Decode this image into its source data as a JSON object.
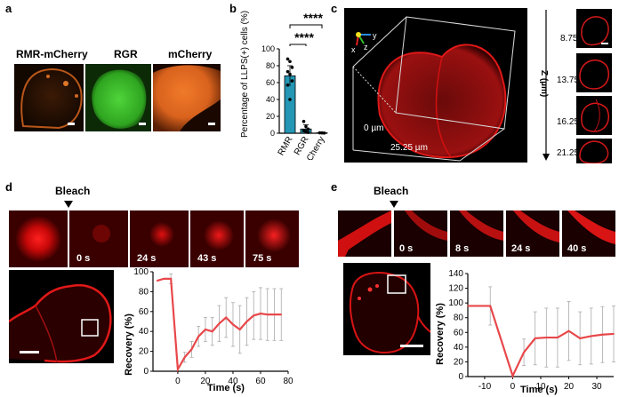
{
  "panel_labels": {
    "a": "a",
    "b": "b",
    "c": "c",
    "d": "d",
    "e": "e"
  },
  "panel_a": {
    "captions": [
      "RMR-mCherry",
      "RGR",
      "mCherry"
    ]
  },
  "panel_b": {
    "ylabel": "Percentage of LLPS(+) cells (%)",
    "significance": [
      "****",
      "****"
    ]
  },
  "panel_c": {
    "axes": [
      "x",
      "y",
      "z"
    ],
    "label_origin": "0 µm",
    "label_length": "25.25 µm",
    "z_axis_label": "Z (µm)",
    "z_values": [
      "8.75",
      "13.75",
      "16.25",
      "21.25"
    ]
  },
  "panel_d": {
    "bleach_label": "Bleach",
    "times": [
      "0 s",
      "24 s",
      "43 s",
      "75 s"
    ],
    "ylabel": "Recovery (%)",
    "xlabel": "Time (s)"
  },
  "panel_e": {
    "bleach_label": "Bleach",
    "times": [
      "0 s",
      "8 s",
      "24 s",
      "40 s"
    ],
    "ylabel": "Recovery (%)",
    "xlabel": "Time (s)"
  },
  "chart_data": [
    {
      "type": "bar",
      "categories": [
        "RMR",
        "RGR",
        "mCherry"
      ],
      "values": [
        68,
        5,
        0.5
      ],
      "errors": [
        12,
        5,
        0.5
      ],
      "points": [
        [
          88,
          85,
          78,
          73,
          70,
          62,
          57,
          40
        ],
        [
          14,
          8,
          5,
          3,
          2,
          1
        ],
        [
          0.5,
          0.3,
          0.2
        ]
      ],
      "ylim": [
        0,
        100
      ],
      "yticks": [
        0,
        20,
        40,
        60,
        80,
        100
      ],
      "color": "#2596b4"
    },
    {
      "type": "line",
      "x": [
        -15,
        -10,
        -5,
        0,
        5,
        10,
        15,
        20,
        25,
        30,
        35,
        40,
        45,
        50,
        55,
        60,
        65,
        70,
        75
      ],
      "y": [
        91,
        93,
        93,
        2,
        14,
        22,
        35,
        42,
        40,
        48,
        54,
        47,
        42,
        50,
        56,
        58,
        57,
        57,
        57
      ],
      "err": [
        0,
        0,
        5,
        0,
        5,
        8,
        10,
        12,
        14,
        18,
        20,
        22,
        24,
        24,
        24,
        26,
        26,
        26,
        26
      ],
      "xlim": [
        -18,
        80
      ],
      "ylim": [
        0,
        100
      ],
      "xticks": [
        0,
        20,
        40,
        60,
        80
      ],
      "yticks": [
        0,
        20,
        40,
        60,
        80,
        100
      ],
      "color": "#e8474a"
    },
    {
      "type": "line",
      "x": [
        -16,
        -8,
        0,
        4,
        8,
        12,
        16,
        20,
        24,
        28,
        32,
        36
      ],
      "y": [
        96,
        96,
        1,
        33,
        52,
        53,
        53,
        62,
        52,
        55,
        57,
        58
      ],
      "err": [
        0,
        26,
        0,
        18,
        36,
        40,
        40,
        40,
        36,
        38,
        38,
        38
      ],
      "xlim": [
        -16,
        36
      ],
      "ylim": [
        0,
        140
      ],
      "xticks": [
        -10,
        0,
        10,
        20,
        30
      ],
      "yticks": [
        0,
        20,
        40,
        60,
        80,
        100,
        120,
        140
      ],
      "color": "#e8474a"
    }
  ]
}
